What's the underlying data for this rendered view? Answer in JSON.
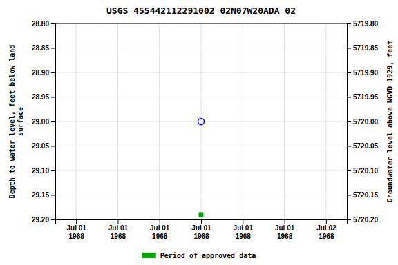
{
  "chart_data": {
    "type": "scatter",
    "title": "USGS 455442112291002 02N07W20ADA 02",
    "y_label": "Depth to water level, feet below land\nsurface",
    "y2_label": "Groundwater level above NGVD 1929, feet",
    "categories": [
      "Jul 01\n1968",
      "Jul 01\n1968",
      "Jul 01\n1968",
      "Jul 01\n1968",
      "Jul 01\n1968",
      "Jul 01\n1968",
      "Jul 02\n1968"
    ],
    "series": [
      {
        "color": "blue",
        "marker": "circle-open",
        "values": [
          null,
          null,
          null,
          29.0,
          null,
          null,
          null
        ]
      },
      {
        "name": "Period of approved data",
        "color": "#00aa00",
        "marker": "square",
        "values": [
          null,
          null,
          null,
          29.19,
          null,
          null,
          null
        ]
      }
    ],
    "ylim": [
      29.2,
      28.8
    ],
    "yticks": [
      {
        "value": 28.8,
        "label": "28.80"
      },
      28.85,
      {
        "value": 28.9,
        "label": "28.90"
      },
      28.95,
      {
        "value": 29.0,
        "label": "29.00"
      },
      29.05,
      {
        "value": 29.1,
        "label": "29.10"
      },
      29.15,
      {
        "value": 29.2,
        "label": "29.20"
      }
    ],
    "y2lim": [
      5720.2,
      5719.8
    ],
    "y2ticks": [
      {
        "value": 5720.2,
        "label": "5720.20"
      },
      5720.15,
      {
        "value": 5720.1,
        "label": "5720.10"
      },
      5720.05,
      {
        "value": 5720.0,
        "label": "5720.00"
      },
      5719.95,
      {
        "value": 5719.9,
        "label": "5719.90"
      },
      5719.85,
      {
        "value": 5719.8,
        "label": "5719.80"
      }
    ],
    "grid": true,
    "legend": "bottom"
  }
}
